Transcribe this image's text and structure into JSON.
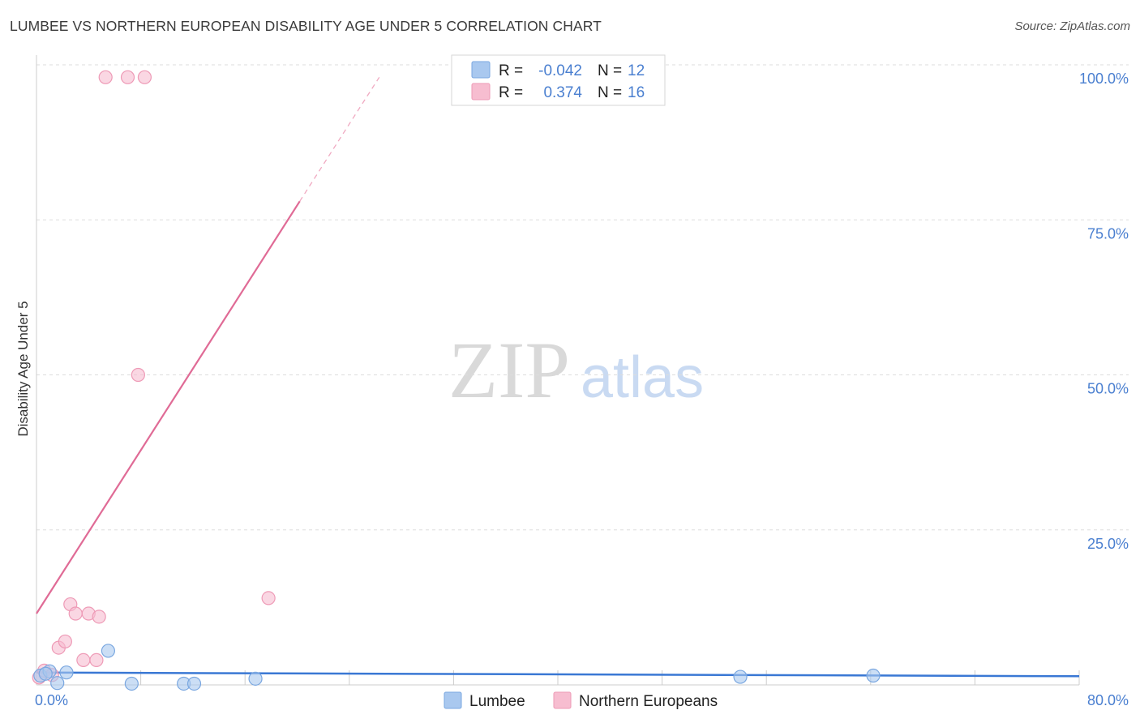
{
  "header": {
    "title": "LUMBEE VS NORTHERN EUROPEAN DISABILITY AGE UNDER 5 CORRELATION CHART",
    "source": "Source: ZipAtlas.com"
  },
  "watermark": {
    "zip": "ZIP",
    "atlas": "atlas"
  },
  "legend_box": {
    "rows": [
      {
        "r_label": "R =",
        "r_value": "-0.042",
        "n_label": "N =",
        "n_value": "12"
      },
      {
        "r_label": "R =",
        "r_value": "0.374",
        "n_label": "N =",
        "n_value": "16"
      }
    ]
  },
  "bottom_legend": {
    "items": [
      "Lumbee",
      "Northern Europeans"
    ]
  },
  "colors": {
    "lumbee_fill": "#a9c8ef",
    "lumbee_stroke": "#7aa7e0",
    "lumbee_line": "#3a78d4",
    "ne_fill": "#f7bdd0",
    "ne_stroke": "#ee9ab6",
    "ne_line": "#e06b96",
    "grid": "#dddddd",
    "tick": "#4a7fd0"
  },
  "chart_data": {
    "type": "scatter",
    "title": "LUMBEE VS NORTHERN EUROPEAN DISABILITY AGE UNDER 5 CORRELATION CHART",
    "xlabel": "",
    "ylabel": "Disability Age Under 5",
    "xlim": [
      0,
      80
    ],
    "ylim": [
      0,
      100
    ],
    "x_tick_labels": [
      "0.0%",
      "80.0%"
    ],
    "y_ticks": [
      25,
      50,
      75,
      100
    ],
    "y_tick_labels": [
      "25.0%",
      "50.0%",
      "75.0%",
      "100.0%"
    ],
    "grid": true,
    "legend_position": "top-center",
    "series": [
      {
        "name": "Lumbee",
        "points": [
          [
            0.3,
            1.5
          ],
          [
            1.0,
            2.2
          ],
          [
            1.6,
            0.3
          ],
          [
            2.3,
            2.0
          ],
          [
            5.5,
            5.5
          ],
          [
            7.3,
            0.2
          ],
          [
            11.3,
            0.2
          ],
          [
            12.1,
            0.2
          ],
          [
            16.8,
            1.0
          ],
          [
            54.0,
            1.3
          ],
          [
            64.2,
            1.5
          ],
          [
            0.7,
            1.8
          ]
        ],
        "trend": {
          "x": [
            0,
            80
          ],
          "y": [
            2.0,
            1.4
          ]
        }
      },
      {
        "name": "Northern Europeans",
        "points": [
          [
            0.2,
            1.2
          ],
          [
            0.6,
            2.3
          ],
          [
            1.2,
            1.6
          ],
          [
            1.7,
            6.0
          ],
          [
            2.2,
            7.0
          ],
          [
            2.6,
            13.0
          ],
          [
            3.0,
            11.5
          ],
          [
            3.6,
            4.0
          ],
          [
            4.0,
            11.5
          ],
          [
            4.6,
            4.0
          ],
          [
            4.8,
            11.0
          ],
          [
            5.3,
            98.0
          ],
          [
            7.0,
            98.0
          ],
          [
            8.3,
            98.0
          ],
          [
            7.8,
            50.0
          ],
          [
            17.8,
            14.0
          ]
        ],
        "trend": {
          "x": [
            0,
            20.2
          ],
          "y": [
            11.5,
            78.0
          ]
        },
        "trend_dashed": {
          "x": [
            20.2,
            26.3
          ],
          "y": [
            78.0,
            98.0
          ]
        }
      }
    ]
  }
}
